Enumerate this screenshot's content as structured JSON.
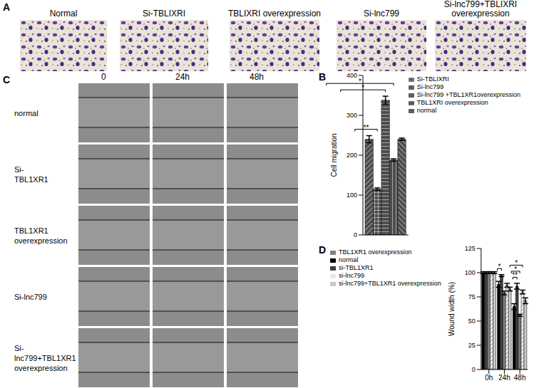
{
  "panels": {
    "A": {
      "label": "A",
      "images": [
        "Normal",
        "Si-TBLIXRI",
        "TBLIXRI overexpression",
        "Si-lnc799",
        "Si-lnc799+TBLIXRI overexpression"
      ]
    },
    "C": {
      "label": "C",
      "times": [
        "0",
        "24h",
        "48h"
      ],
      "rows": [
        [
          "normal"
        ],
        [
          "Si-",
          "TBL1XR1"
        ],
        [
          "TBL1XR1",
          "overexpression"
        ],
        [
          "Si-lnc799"
        ],
        [
          "Si-lnc799+TBL1XR1",
          "overexpression"
        ]
      ]
    }
  },
  "chart_data": [
    {
      "type": "bar",
      "title": "B",
      "categories": [
        null
      ],
      "ylabel": "Cell migration",
      "ylim": [
        0,
        400
      ],
      "yticks": [
        0,
        100,
        200,
        300,
        400
      ],
      "legend": "top-right",
      "tick_labels": "y",
      "series": [
        {
          "name": "normal",
          "color": "#4d4d4d",
          "values": [
            240
          ],
          "errors": [
            9
          ]
        },
        {
          "name": "Si-TBLIXRI",
          "color": "#4d4d4d",
          "values": [
            115
          ],
          "errors": [
            3
          ]
        },
        {
          "name": "TBL1XRI overexpression",
          "color": "#4d4d4d",
          "values": [
            338
          ],
          "errors": [
            10
          ]
        },
        {
          "name": "Si-lnc799",
          "color": "#4d4d4d",
          "values": [
            188
          ],
          "errors": [
            3
          ]
        },
        {
          "name": "Si-lnc799 +TBL1XR1overexpression",
          "color": "#4d4d4d",
          "values": [
            240
          ],
          "errors": [
            3
          ]
        }
      ],
      "significance": [
        {
          "category": 0,
          "from": "normal",
          "to": "Si-TBLIXRI",
          "label": "**"
        },
        {
          "category": 0,
          "from": "normal",
          "to": "TBL1XRI overexpression",
          "label": "*"
        },
        {
          "category": 0,
          "from": "normal",
          "to": "Si-lnc799",
          "label": "*"
        }
      ]
    },
    {
      "type": "bar",
      "title": "D",
      "categories": [
        "0h",
        "24h",
        "48h"
      ],
      "ylabel": "Wound width (%)",
      "ylim": [
        0,
        125
      ],
      "yticks": [
        0,
        25,
        50,
        75,
        100,
        125
      ],
      "legend": "top-left",
      "series": [
        {
          "name": "normal",
          "color": "#000000",
          "values": [
            100,
            88,
            65
          ],
          "errors": [
            1,
            3,
            3
          ]
        },
        {
          "name": "si-TBL1XR1",
          "color": "#404040",
          "values": [
            100,
            97,
            86
          ],
          "errors": [
            1,
            1,
            3
          ]
        },
        {
          "name": "TBL1XR1 overexpression",
          "color": "#808080",
          "values": [
            100,
            79,
            56
          ],
          "errors": [
            1,
            2,
            1
          ]
        },
        {
          "name": "si-lnc799",
          "color": "#a0a0a0",
          "values": [
            100,
            87,
            80
          ],
          "errors": [
            1,
            2,
            2
          ]
        },
        {
          "name": "si-lnc799+TBL1XR1 overexpression",
          "color": "#c8c8c8",
          "values": [
            100,
            83,
            71
          ],
          "errors": [
            1,
            2,
            3
          ]
        }
      ],
      "significance": [
        {
          "category": 1,
          "from": "normal",
          "to": "si-TBL1XR1",
          "label": "*"
        },
        {
          "category": 2,
          "from": "normal",
          "to": "si-TBL1XR1",
          "label": "**"
        },
        {
          "category": 2,
          "from": "normal",
          "to": "TBL1XR1 overexpression",
          "label": "*"
        },
        {
          "category": 2,
          "from": "normal",
          "to": "si-lnc799",
          "label": "*"
        }
      ]
    }
  ]
}
